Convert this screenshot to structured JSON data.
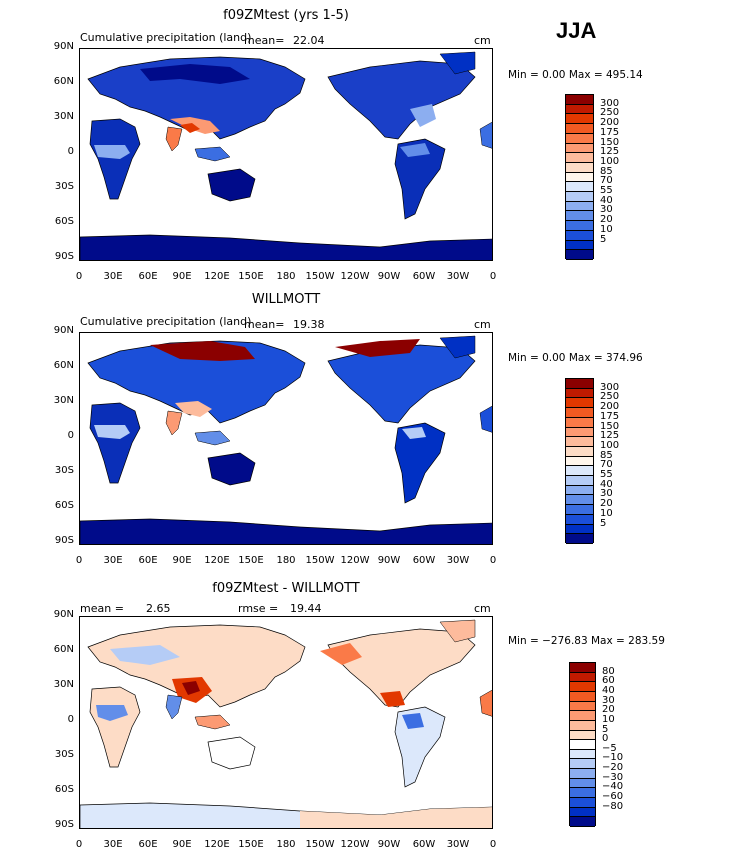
{
  "season": "JJA",
  "panels": [
    {
      "title": "f09ZMtest (yrs 1-5)",
      "subtitle": "Cumulative precipitation (land)",
      "mean_label": "mean=",
      "mean_value": "22.04",
      "rmse_label": "",
      "rmse_value": "",
      "units": "cm",
      "minmax": "Min =    0.00 Max = 495.14",
      "lat_labels": [
        "90N",
        "60N",
        "30N",
        "0",
        "30S",
        "60S",
        "90S"
      ],
      "lon_labels": [
        "0",
        "30E",
        "60E",
        "90E",
        "120E",
        "150E",
        "180",
        "150W",
        "120W",
        "90W",
        "60W",
        "30W",
        "0"
      ],
      "colorbar_labels": [
        "300",
        "250",
        "200",
        "175",
        "150",
        "125",
        "100",
        "85",
        "70",
        "55",
        "40",
        "30",
        "20",
        "10",
        "5"
      ],
      "colorbar_colors": [
        "#8b0000",
        "#c01a00",
        "#e23800",
        "#f25a22",
        "#fa7a48",
        "#fc9a73",
        "#fdbb9c",
        "#fddcc6",
        "#fff6ec",
        "#dce8fb",
        "#b5ccf6",
        "#8caef0",
        "#628ee9",
        "#3b6ee2",
        "#1b4fd9",
        "#0030c4",
        "#000b8a"
      ]
    },
    {
      "title": "WILLMOTT",
      "subtitle": "Cumulative precipitation (land)",
      "mean_label": "mean=",
      "mean_value": "19.38",
      "rmse_label": "",
      "rmse_value": "",
      "units": "cm",
      "minmax": "Min =    0.00 Max = 374.96",
      "lat_labels": [
        "90N",
        "60N",
        "30N",
        "0",
        "30S",
        "60S",
        "90S"
      ],
      "lon_labels": [
        "0",
        "30E",
        "60E",
        "90E",
        "120E",
        "150E",
        "180",
        "150W",
        "120W",
        "90W",
        "60W",
        "30W",
        "0"
      ],
      "colorbar_labels": [
        "300",
        "250",
        "200",
        "175",
        "150",
        "125",
        "100",
        "85",
        "70",
        "55",
        "40",
        "30",
        "20",
        "10",
        "5"
      ],
      "colorbar_colors": [
        "#8b0000",
        "#c01a00",
        "#e23800",
        "#f25a22",
        "#fa7a48",
        "#fc9a73",
        "#fdbb9c",
        "#fddcc6",
        "#fff6ec",
        "#dce8fb",
        "#b5ccf6",
        "#8caef0",
        "#628ee9",
        "#3b6ee2",
        "#1b4fd9",
        "#0030c4",
        "#000b8a"
      ]
    },
    {
      "title": "f09ZMtest - WILLMOTT",
      "subtitle": "",
      "mean_label": "mean =",
      "mean_value": "2.65",
      "rmse_label": "rmse =",
      "rmse_value": "19.44",
      "units": "cm",
      "minmax": "Min = −276.83 Max = 283.59",
      "lat_labels": [
        "90N",
        "60N",
        "30N",
        "0",
        "30S",
        "60S",
        "90S"
      ],
      "lon_labels": [
        "0",
        "30E",
        "60E",
        "90E",
        "120E",
        "150E",
        "180",
        "150W",
        "120W",
        "90W",
        "60W",
        "30W",
        "0"
      ],
      "colorbar_labels": [
        "80",
        "60",
        "40",
        "30",
        "20",
        "10",
        "5",
        "0",
        "−5",
        "−10",
        "−20",
        "−30",
        "−40",
        "−60",
        "−80"
      ],
      "colorbar_colors": [
        "#8b0000",
        "#c01a00",
        "#e23800",
        "#f25a22",
        "#fa7a48",
        "#fc9a73",
        "#fdbb9c",
        "#fddcc6",
        "#ffffff",
        "#dce8fb",
        "#b5ccf6",
        "#8caef0",
        "#628ee9",
        "#3b6ee2",
        "#1b4fd9",
        "#0030c4",
        "#000b8a"
      ]
    }
  ],
  "colors": {
    "land_wet_red": "#d8361e",
    "land_dry_blue": "#0a2fb8",
    "land_mid_blue": "#2e5fd6",
    "ocean": "#ffffff",
    "coastline": "#000000"
  }
}
